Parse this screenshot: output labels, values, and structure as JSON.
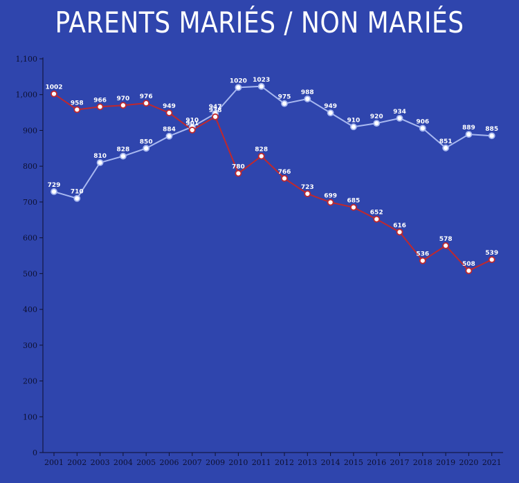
{
  "chart_data": {
    "type": "line",
    "title": "PARENTS MARIÉS / NON MARIÉS",
    "xlabel": "",
    "ylabel": "",
    "categories": [
      "2001",
      "2002",
      "2003",
      "2004",
      "2005",
      "2006",
      "2007",
      "2009",
      "2010",
      "2011",
      "2012",
      "2013",
      "2014",
      "2015",
      "2016",
      "2017",
      "2018",
      "2019",
      "2020",
      "2021"
    ],
    "ylim": [
      0,
      1100
    ],
    "yticks": [
      0,
      100,
      200,
      300,
      400,
      500,
      600,
      700,
      800,
      900,
      1000,
      1100
    ],
    "ytick_labels": [
      "0",
      "100",
      "200",
      "300",
      "400",
      "500",
      "600",
      "700",
      "800",
      "900",
      "1,000",
      "1,100"
    ],
    "grid": false,
    "legend": "none",
    "series": [
      {
        "color": "#c0282d",
        "values": [
          1002,
          958,
          966,
          970,
          976,
          949,
          901,
          938,
          780,
          828,
          766,
          723,
          699,
          685,
          652,
          616,
          536,
          578,
          508,
          539
        ]
      },
      {
        "color": "#a8b8f0",
        "values": [
          729,
          710,
          810,
          828,
          850,
          884,
          910,
          947,
          1020,
          1023,
          975,
          988,
          949,
          910,
          920,
          934,
          906,
          851,
          889,
          885
        ]
      }
    ]
  },
  "colors": {
    "background": "#2f45ad",
    "axis": "#0d1030",
    "label": "#ffffff"
  }
}
